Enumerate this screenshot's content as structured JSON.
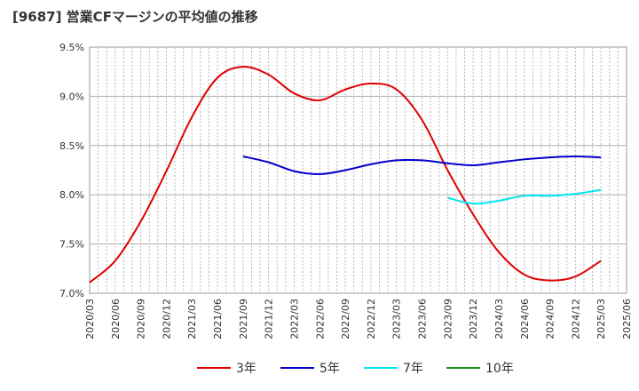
{
  "chart_data": {
    "type": "line",
    "title": "[9687]  営業CFマージンの平均値の推移",
    "xlabel": "",
    "ylabel": "",
    "ylim": [
      7.0,
      9.5
    ],
    "y_ticks": [
      "7.0%",
      "7.5%",
      "8.0%",
      "8.5%",
      "9.0%",
      "9.5%"
    ],
    "x_ticks": [
      "2020/03",
      "2020/06",
      "2020/09",
      "2020/12",
      "2021/03",
      "2021/06",
      "2021/09",
      "2021/12",
      "2022/03",
      "2022/06",
      "2022/09",
      "2022/12",
      "2023/03",
      "2023/06",
      "2023/09",
      "2023/12",
      "2024/03",
      "2024/06",
      "2024/09",
      "2024/12",
      "2025/03",
      "2025/06"
    ],
    "grid": true,
    "legend_position": "bottom",
    "series": [
      {
        "name": "3年",
        "color": "#e00000",
        "x": [
          "2020/03",
          "2020/06",
          "2020/09",
          "2020/12",
          "2021/03",
          "2021/06",
          "2021/09",
          "2021/12",
          "2022/03",
          "2022/06",
          "2022/09",
          "2022/12",
          "2023/03",
          "2023/06",
          "2023/09",
          "2023/12",
          "2024/03",
          "2024/06",
          "2024/09",
          "2024/12",
          "2025/03"
        ],
        "values": [
          7.11,
          7.33,
          7.73,
          8.24,
          8.79,
          9.19,
          9.3,
          9.22,
          9.03,
          8.96,
          9.07,
          9.13,
          9.07,
          8.76,
          8.25,
          7.8,
          7.42,
          7.19,
          7.13,
          7.17,
          7.33
        ]
      },
      {
        "name": "5年",
        "color": "#0000cc",
        "x": [
          "2021/09",
          "2021/12",
          "2022/03",
          "2022/06",
          "2022/09",
          "2022/12",
          "2023/03",
          "2023/06",
          "2023/09",
          "2023/12",
          "2024/03",
          "2024/06",
          "2024/09",
          "2024/12",
          "2025/03"
        ],
        "values": [
          8.39,
          8.33,
          8.24,
          8.21,
          8.25,
          8.31,
          8.35,
          8.35,
          8.32,
          8.3,
          8.33,
          8.36,
          8.38,
          8.39,
          8.38
        ]
      },
      {
        "name": "7年",
        "color": "#00e5ee",
        "x": [
          "2023/09",
          "2023/12",
          "2024/03",
          "2024/06",
          "2024/09",
          "2024/12",
          "2025/03"
        ],
        "values": [
          7.97,
          7.91,
          7.94,
          7.99,
          7.99,
          8.01,
          8.05
        ]
      },
      {
        "name": "10年",
        "color": "#228b22",
        "x": [],
        "values": []
      }
    ]
  }
}
